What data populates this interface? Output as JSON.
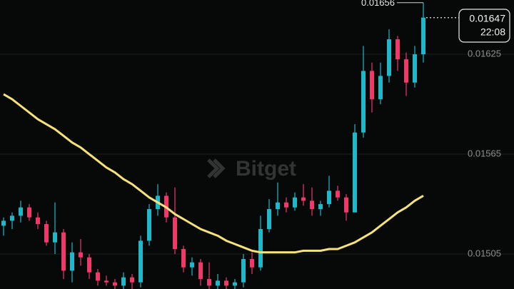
{
  "chart_data": {
    "type": "candlestick",
    "watermark": "Bitget",
    "countdown": "22:08",
    "up_color": "#1fb8c9",
    "down_color": "#f0386b",
    "ma_color": "#f5e27a",
    "grid": true,
    "ylim": [
      0.01484,
      0.016576
    ],
    "yticks": [
      0.01625,
      0.01565,
      0.01505
    ],
    "open": [
      0.01522,
      0.01525,
      0.01528,
      0.01533,
      0.01527,
      0.01523,
      0.01512,
      0.01518,
      0.01495,
      0.01506,
      0.01503,
      0.01494,
      0.01489,
      0.01488,
      0.01486,
      0.01491,
      0.01488,
      0.01513,
      0.01532,
      0.0154,
      0.01527,
      0.01508,
      0.01497,
      0.015,
      0.0149,
      0.01486,
      0.01489,
      0.01486,
      0.01488,
      0.01502,
      0.01497,
      0.0152,
      0.01532,
      0.01536,
      0.01533,
      0.01539,
      0.01537,
      0.01532,
      0.01535,
      0.01543,
      0.01539,
      0.0153,
      0.01578,
      0.01615,
      0.01598,
      0.01612,
      0.01634,
      0.01622,
      0.01608,
      0.01625
    ],
    "high": [
      0.01527,
      0.0153,
      0.01537,
      0.01535,
      0.0153,
      0.01525,
      0.01536,
      0.0152,
      0.01512,
      0.01514,
      0.01505,
      0.01496,
      0.01492,
      0.0149,
      0.01494,
      0.01493,
      0.01516,
      0.01535,
      0.01547,
      0.01542,
      0.01545,
      0.0151,
      0.01503,
      0.01502,
      0.015,
      0.01493,
      0.01491,
      0.0149,
      0.01505,
      0.01506,
      0.01528,
      0.01538,
      0.01548,
      0.01539,
      0.01542,
      0.01547,
      0.01545,
      0.01537,
      0.01552,
      0.01546,
      0.01541,
      0.01583,
      0.0163,
      0.0162,
      0.0162,
      0.0164,
      0.01636,
      0.01626,
      0.0163,
      0.01656
    ],
    "low": [
      0.01516,
      0.0152,
      0.01524,
      0.01525,
      0.0152,
      0.0151,
      0.01505,
      0.0149,
      0.01488,
      0.01498,
      0.0149,
      0.01486,
      0.01486,
      0.01484,
      0.01484,
      0.01484,
      0.01485,
      0.0151,
      0.01528,
      0.01524,
      0.01505,
      0.01494,
      0.01492,
      0.01486,
      0.01484,
      0.01484,
      0.01484,
      0.01484,
      0.01485,
      0.01493,
      0.01495,
      0.01518,
      0.01528,
      0.0153,
      0.01531,
      0.01534,
      0.01528,
      0.01528,
      0.01533,
      0.01537,
      0.01525,
      0.0153,
      0.01575,
      0.0159,
      0.01595,
      0.01608,
      0.01615,
      0.016,
      0.01605,
      0.0162
    ],
    "close": [
      0.01525,
      0.01528,
      0.01533,
      0.01527,
      0.01523,
      0.01512,
      0.01518,
      0.01495,
      0.01506,
      0.01503,
      0.01494,
      0.01489,
      0.01488,
      0.01486,
      0.01491,
      0.01488,
      0.01513,
      0.01532,
      0.0154,
      0.01527,
      0.01508,
      0.01497,
      0.015,
      0.0149,
      0.01486,
      0.01489,
      0.01486,
      0.01488,
      0.01502,
      0.01497,
      0.0152,
      0.01532,
      0.01536,
      0.01533,
      0.01539,
      0.01537,
      0.01532,
      0.01535,
      0.01543,
      0.01539,
      0.0153,
      0.01578,
      0.01615,
      0.01598,
      0.01612,
      0.01634,
      0.01622,
      0.01608,
      0.01625,
      0.01647
    ],
    "ma": [
      0.01601,
      0.01598,
      0.01594,
      0.0159,
      0.01586,
      0.01583,
      0.0158,
      0.01576,
      0.01572,
      0.01569,
      0.01565,
      0.01561,
      0.01557,
      0.01554,
      0.0155,
      0.01547,
      0.01543,
      0.01539,
      0.01536,
      0.01533,
      0.01529,
      0.01526,
      0.01523,
      0.0152,
      0.01518,
      0.01516,
      0.01513,
      0.01511,
      0.01509,
      0.01507,
      0.01506,
      0.01506,
      0.01506,
      0.01506,
      0.01506,
      0.01507,
      0.01507,
      0.01507,
      0.01508,
      0.01508,
      0.0151,
      0.01512,
      0.01515,
      0.01518,
      0.01522,
      0.01526,
      0.0153,
      0.01533,
      0.01537,
      0.0154
    ]
  }
}
